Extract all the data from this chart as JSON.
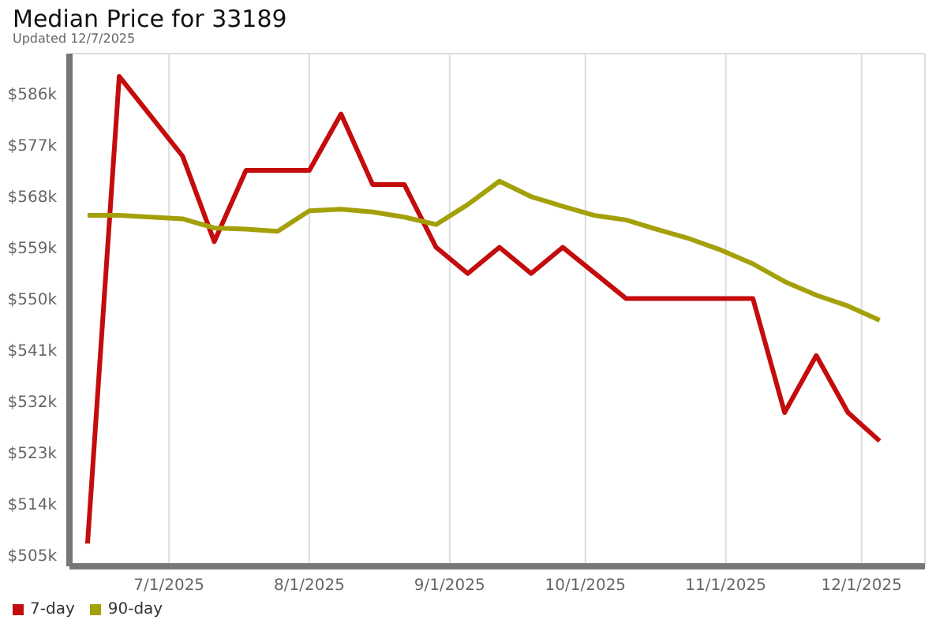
{
  "chart_data": {
    "type": "line",
    "title": "Median Price for 33189",
    "subtitle": "Updated 12/7/2025",
    "x": [
      "2025-06-13",
      "2025-06-20",
      "2025-06-27",
      "2025-07-04",
      "2025-07-11",
      "2025-07-18",
      "2025-07-25",
      "2025-08-01",
      "2025-08-08",
      "2025-08-15",
      "2025-08-22",
      "2025-08-29",
      "2025-09-05",
      "2025-09-12",
      "2025-09-19",
      "2025-09-26",
      "2025-10-03",
      "2025-10-10",
      "2025-10-17",
      "2025-10-24",
      "2025-10-31",
      "2025-11-07",
      "2025-11-14",
      "2025-11-21",
      "2025-11-28",
      "2025-12-05"
    ],
    "series": [
      {
        "name": "7-day",
        "color": "#c40c0c",
        "values": [
          507,
          589,
          582,
          575,
          560,
          572.5,
          572.5,
          572.5,
          582.4,
          570,
          570,
          559,
          554.4,
          559,
          554.4,
          559,
          554.5,
          550,
          550,
          550,
          550,
          550,
          530,
          540,
          530,
          525
        ]
      },
      {
        "name": "90-day",
        "color": "#a3a00a",
        "values": [
          564.6,
          564.6,
          564.3,
          564,
          562.4,
          562.2,
          561.8,
          565.4,
          565.7,
          565.2,
          564.3,
          563,
          566.5,
          570.6,
          567.9,
          566.2,
          564.6,
          563.8,
          562.1,
          560.5,
          558.5,
          556.1,
          553,
          550.6,
          548.7,
          546.2
        ]
      }
    ],
    "xlim": [
      "2025-06-09",
      "2025-12-15"
    ],
    "xticks": [
      {
        "value": "2025-07-01",
        "label": "7/1/2025"
      },
      {
        "value": "2025-08-01",
        "label": "8/1/2025"
      },
      {
        "value": "2025-09-01",
        "label": "9/1/2025"
      },
      {
        "value": "2025-10-01",
        "label": "10/1/2025"
      },
      {
        "value": "2025-11-01",
        "label": "11/1/2025"
      },
      {
        "value": "2025-12-01",
        "label": "12/1/2025"
      }
    ],
    "ylim": [
      503,
      593
    ],
    "yticks": [
      {
        "value": 505,
        "label": "$505k"
      },
      {
        "value": 514,
        "label": "$514k"
      },
      {
        "value": 523,
        "label": "$523k"
      },
      {
        "value": 532,
        "label": "$532k"
      },
      {
        "value": 541,
        "label": "$541k"
      },
      {
        "value": 550,
        "label": "$550k"
      },
      {
        "value": 559,
        "label": "$559k"
      },
      {
        "value": 568,
        "label": "$568k"
      },
      {
        "value": 577,
        "label": "$577k"
      },
      {
        "value": 586,
        "label": "$586k"
      }
    ],
    "grid": true,
    "legend": "bottom left",
    "marker": "none",
    "line_style": "solid"
  }
}
